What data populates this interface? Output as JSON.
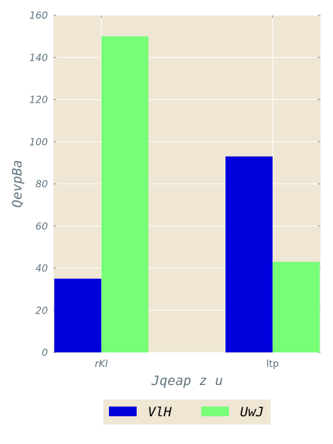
{
  "chart_data": {
    "type": "bar",
    "title": "",
    "xlabel": "Jqeap z u",
    "ylabel": "QevpBa",
    "categories": [
      "rKI",
      "ltp"
    ],
    "category_italic": [
      true,
      false
    ],
    "series": [
      {
        "name": "VlH",
        "values": [
          35,
          93
        ],
        "color": "#0000dd"
      },
      {
        "name": "UwJ",
        "values": [
          150,
          43
        ],
        "color": "#77ff77"
      }
    ],
    "ylim": [
      0,
      160
    ],
    "yticks": [
      0,
      20,
      40,
      60,
      80,
      100,
      120,
      140,
      160
    ],
    "grid": true,
    "legend_position": "bottom-center",
    "plot_background": "#efe6d4",
    "grid_color": "#ffffff",
    "text_color": "#5f7480"
  }
}
